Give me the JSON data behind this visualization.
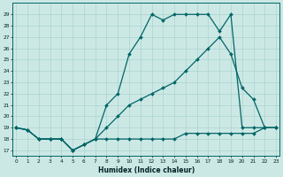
{
  "xlabel": "Humidex (Indice chaleur)",
  "bg_color": "#cce8e5",
  "line_color": "#006666",
  "grid_color": "#aad4d0",
  "series": {
    "line1_x": [
      0,
      1,
      2,
      3,
      4,
      5,
      6,
      7,
      8,
      9,
      10,
      11,
      12,
      13,
      14,
      15,
      16,
      17,
      18,
      19,
      20,
      21,
      22,
      23
    ],
    "line1_y": [
      19,
      18.8,
      18,
      18,
      18,
      17,
      17.5,
      18,
      18,
      18,
      18,
      18,
      18,
      18,
      18,
      18.5,
      18.5,
      18.5,
      18.5,
      18.5,
      18.5,
      18.5,
      19,
      19
    ],
    "line2_x": [
      0,
      1,
      2,
      3,
      4,
      5,
      6,
      7,
      8,
      9,
      10,
      11,
      12,
      13,
      14,
      15,
      16,
      17,
      18,
      19,
      20,
      21,
      22,
      23
    ],
    "line2_y": [
      19,
      18.8,
      18,
      18,
      18,
      17,
      17.5,
      18,
      19,
      20,
      21,
      21.5,
      22,
      22.5,
      23,
      24,
      25,
      26,
      27,
      25.5,
      22.5,
      21.5,
      19,
      19
    ],
    "line3_x": [
      0,
      1,
      2,
      3,
      4,
      5,
      6,
      7,
      8,
      9,
      10,
      11,
      12,
      13,
      14,
      15,
      16,
      17,
      18,
      19,
      20,
      21,
      22,
      23
    ],
    "line3_y": [
      19,
      18.8,
      18,
      18,
      18,
      17,
      17.5,
      18,
      21,
      22,
      25.5,
      27,
      29,
      28.5,
      29,
      29,
      29,
      29,
      27.5,
      29,
      19,
      19,
      19,
      19
    ]
  },
  "xlim": [
    0,
    23
  ],
  "ylim": [
    16.5,
    30
  ],
  "yticks": [
    17,
    18,
    19,
    20,
    21,
    22,
    23,
    24,
    25,
    26,
    27,
    28,
    29
  ],
  "xticks": [
    0,
    1,
    2,
    3,
    4,
    5,
    6,
    7,
    8,
    9,
    10,
    11,
    12,
    13,
    14,
    15,
    16,
    17,
    18,
    19,
    20,
    21,
    22,
    23
  ]
}
